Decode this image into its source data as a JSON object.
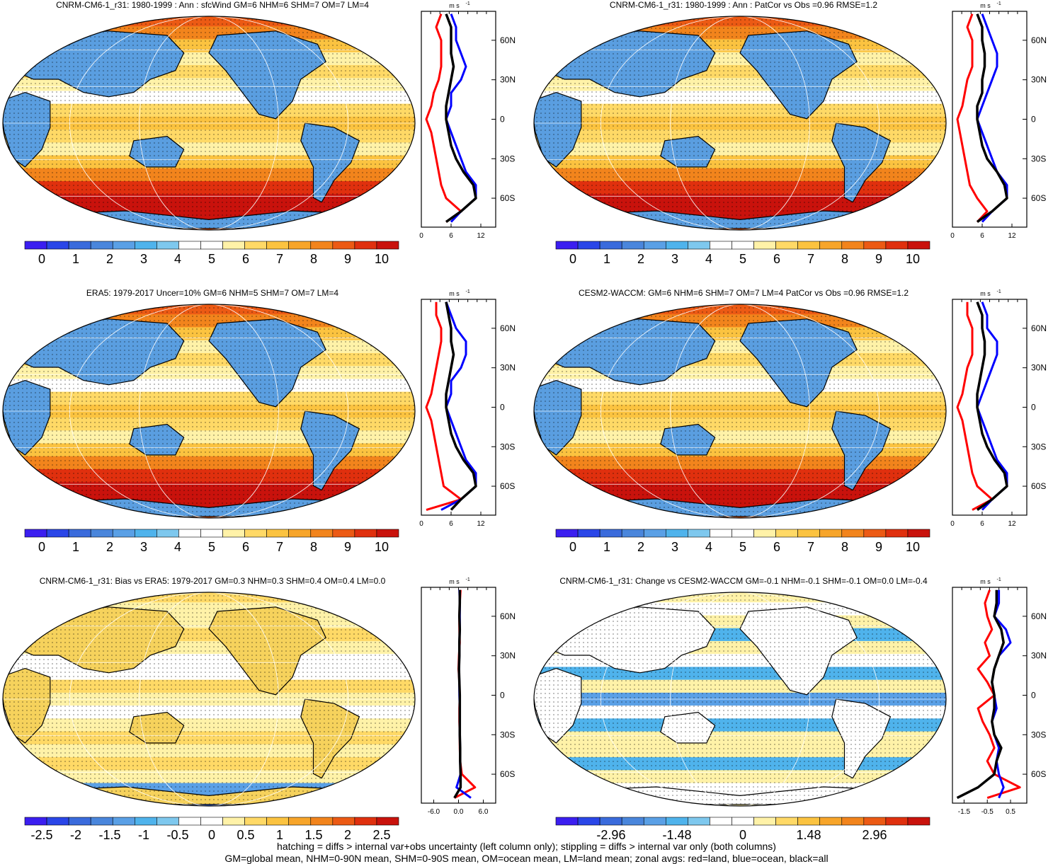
{
  "footer": {
    "line1": "hatching = diffs > internal var+obs uncertainty (left column only); stippling = diffs > internal var only (both columns)",
    "line2": "GM=global mean, NHM=0-90N mean, SHM=0-90S mean, OM=ocean mean, LM=land mean; zonal avgs: red=land, blue=ocean, black=all"
  },
  "colors": {
    "scale": [
      "#3b1ef0",
      "#2a46e8",
      "#3a6bdc",
      "#4a86dc",
      "#5aa0e6",
      "#4fb3ec",
      "#7ec8ee",
      "#ffffff",
      "#ffffff",
      "#fff2a8",
      "#ffd966",
      "#fbc340",
      "#f7a52a",
      "#f2841c",
      "#ec5a14",
      "#e0300e",
      "#c9120c"
    ],
    "land": "#ff0000",
    "ocean": "#0000ff",
    "all": "#000000",
    "continent": "#5a9ee0"
  },
  "chart_data": [
    {
      "id": "p1",
      "type": "heatmap",
      "title": "CNRM-CM6-1_r31: 1980-1999 : Ann : sfcWind GM=6 NHM=6 SHM=7 OM=7 LM=4",
      "colorbar": {
        "min": -0.5,
        "max": 10.5,
        "labels": [
          "0",
          "1",
          "2",
          "3",
          "4",
          "5",
          "6",
          "7",
          "8",
          "9",
          "10"
        ],
        "label_values": [
          0,
          1,
          2,
          3,
          4,
          5,
          6,
          7,
          8,
          9,
          10
        ]
      },
      "profile": {
        "unit": "m s",
        "unit_exp": "-1",
        "xlim": [
          0,
          15
        ],
        "xticks": [
          0,
          6,
          12
        ],
        "xtick_labels": [
          "0",
          "6",
          "12"
        ],
        "lat_ticks": [
          60,
          30,
          0,
          -30,
          -60
        ],
        "lat_labels": [
          "60N",
          "30N",
          "0",
          "30S",
          "60S"
        ],
        "lat": [
          80,
          70,
          60,
          50,
          40,
          30,
          20,
          10,
          0,
          -10,
          -20,
          -30,
          -40,
          -50,
          -60,
          -70,
          -78
        ],
        "land": [
          4,
          3,
          4,
          4,
          4,
          3.5,
          2.5,
          2,
          1,
          2,
          2.5,
          3,
          3.5,
          4,
          5,
          8,
          5
        ],
        "ocean": [
          6,
          7,
          7,
          8,
          9,
          8,
          6,
          6,
          5,
          6,
          7,
          8,
          9,
          11,
          11,
          8,
          6
        ],
        "all": [
          5,
          6,
          6,
          6,
          6.5,
          6,
          5.5,
          5,
          5,
          5.5,
          6,
          7,
          8.5,
          10.5,
          11,
          8,
          5
        ]
      }
    },
    {
      "id": "p2",
      "type": "heatmap",
      "title": "CNRM-CM6-1_r31: 1980-1999 : Ann : PatCor vs Obs =0.96 RMSE=1.2",
      "colorbar": {
        "min": -0.5,
        "max": 10.5,
        "labels": [
          "0",
          "1",
          "2",
          "3",
          "4",
          "5",
          "6",
          "7",
          "8",
          "9",
          "10"
        ],
        "label_values": [
          0,
          1,
          2,
          3,
          4,
          5,
          6,
          7,
          8,
          9,
          10
        ]
      },
      "profile": {
        "unit": "m s",
        "unit_exp": "-1",
        "xlim": [
          0,
          15
        ],
        "xticks": [
          0,
          6,
          12
        ],
        "xtick_labels": [
          "0",
          "6",
          "12"
        ],
        "lat_ticks": [
          60,
          30,
          0,
          -30,
          -60
        ],
        "lat_labels": [
          "60N",
          "30N",
          "0",
          "30S",
          "60S"
        ],
        "lat": [
          80,
          70,
          60,
          50,
          40,
          30,
          20,
          10,
          0,
          -10,
          -20,
          -30,
          -40,
          -50,
          -60,
          -70,
          -78
        ],
        "land": [
          4,
          3,
          4,
          4,
          4,
          3,
          2.5,
          2,
          1,
          1.5,
          2,
          2.5,
          3,
          3.5,
          5,
          7,
          5
        ],
        "ocean": [
          6,
          7,
          8,
          9,
          9,
          8,
          7,
          6,
          5,
          6,
          7,
          8,
          9,
          11,
          11,
          8,
          6
        ],
        "all": [
          5,
          6,
          6,
          6.5,
          6.5,
          6,
          6,
          5,
          5,
          5.5,
          6,
          7,
          9,
          10.5,
          11,
          8,
          5
        ]
      }
    },
    {
      "id": "p3",
      "type": "heatmap",
      "title": "ERA5: 1979-2017 Uncer=10% GM=6 NHM=5 SHM=7 OM=7 LM=4",
      "colorbar": {
        "min": -0.5,
        "max": 10.5,
        "labels": [
          "0",
          "1",
          "2",
          "3",
          "4",
          "5",
          "6",
          "7",
          "8",
          "9",
          "10"
        ],
        "label_values": [
          0,
          1,
          2,
          3,
          4,
          5,
          6,
          7,
          8,
          9,
          10
        ]
      },
      "profile": {
        "unit": "m s",
        "unit_exp": "-1",
        "xlim": [
          0,
          15
        ],
        "xticks": [
          0,
          6,
          12
        ],
        "xtick_labels": [
          "0",
          "6",
          "12"
        ],
        "lat_ticks": [
          60,
          30,
          0,
          -30,
          -60
        ],
        "lat_labels": [
          "60N",
          "30N",
          "0",
          "30S",
          "60S"
        ],
        "lat": [
          80,
          70,
          60,
          50,
          40,
          30,
          20,
          10,
          0,
          -10,
          -20,
          -30,
          -40,
          -50,
          -60,
          -70,
          -78
        ],
        "land": [
          3,
          3,
          4,
          4,
          3.5,
          3,
          2.5,
          2,
          1,
          2,
          2.5,
          3,
          3.5,
          4,
          4.5,
          8,
          1
        ],
        "ocean": [
          5,
          6,
          7,
          9,
          9,
          8,
          6,
          6,
          5,
          6,
          7,
          8,
          9,
          11,
          11,
          8,
          4
        ],
        "all": [
          5,
          5.5,
          6,
          6,
          6.5,
          6,
          5.5,
          5,
          5,
          5.5,
          6,
          7,
          8.5,
          10.5,
          11,
          8,
          6
        ]
      }
    },
    {
      "id": "p4",
      "type": "heatmap",
      "title": "CESM2-WACCM: GM=6 NHM=6 SHM=7 OM=7 LM=4 PatCor vs Obs =0.96 RMSE=1.2",
      "colorbar": {
        "min": -0.5,
        "max": 10.5,
        "labels": [
          "0",
          "1",
          "2",
          "3",
          "4",
          "5",
          "6",
          "7",
          "8",
          "9",
          "10"
        ],
        "label_values": [
          0,
          1,
          2,
          3,
          4,
          5,
          6,
          7,
          8,
          9,
          10
        ]
      },
      "profile": {
        "unit": "m s",
        "unit_exp": "-1",
        "xlim": [
          0,
          15
        ],
        "xticks": [
          0,
          6,
          12
        ],
        "xtick_labels": [
          "0",
          "6",
          "12"
        ],
        "lat_ticks": [
          60,
          30,
          0,
          -30,
          -60
        ],
        "lat_labels": [
          "60N",
          "30N",
          "0",
          "30S",
          "60S"
        ],
        "lat": [
          80,
          70,
          60,
          50,
          40,
          30,
          20,
          10,
          0,
          -10,
          -20,
          -30,
          -40,
          -50,
          -60,
          -70,
          -78
        ],
        "land": [
          3,
          3,
          4,
          4,
          4,
          3,
          2.5,
          2,
          1,
          2,
          2.5,
          3,
          3.5,
          4,
          5,
          8,
          4
        ],
        "ocean": [
          6,
          7,
          7,
          9,
          9,
          8,
          7,
          6,
          5,
          6,
          7,
          8,
          9,
          11,
          11,
          8,
          6
        ],
        "all": [
          5,
          6,
          6,
          6.5,
          6.5,
          6,
          5.5,
          5,
          5,
          5.5,
          6,
          7,
          8.5,
          10.5,
          11,
          8,
          5
        ]
      }
    },
    {
      "id": "p5",
      "type": "heatmap",
      "title": "CNRM-CM6-1_r31: Bias vs ERA5: 1979-2017 GM=0.3 NHM=0.3 SHM=0.4 OM=0.4 LM=0.0",
      "colorbar": {
        "min": -2.75,
        "max": 2.75,
        "labels": [
          "-2.5",
          "-2",
          "-1.5",
          "-1",
          "-0.5",
          "0",
          "0.5",
          "1",
          "1.5",
          "2",
          "2.5"
        ],
        "label_values": [
          -2.5,
          -2,
          -1.5,
          -1,
          -0.5,
          0,
          0.5,
          1,
          1.5,
          2,
          2.5
        ]
      },
      "profile": {
        "unit": "m s",
        "unit_exp": "-1",
        "xlim": [
          -9,
          9
        ],
        "xticks": [
          -6,
          0,
          6
        ],
        "xtick_labels": [
          "-6.0",
          "0.0",
          "6.0"
        ],
        "lat_ticks": [
          60,
          30,
          0,
          -30,
          -60
        ],
        "lat_labels": [
          "60N",
          "30N",
          "0",
          "30S",
          "60S"
        ],
        "lat": [
          80,
          70,
          60,
          50,
          40,
          30,
          20,
          10,
          0,
          -10,
          -20,
          -30,
          -40,
          -50,
          -60,
          -70,
          -78
        ],
        "land": [
          0.5,
          0.3,
          0.2,
          0.2,
          0.3,
          0.1,
          0,
          0.2,
          0.3,
          0.2,
          0.2,
          0.3,
          0.3,
          0.4,
          0.8,
          4,
          -1
        ],
        "ocean": [
          0.2,
          0.3,
          0.3,
          0.3,
          0.2,
          0.2,
          0.1,
          0.2,
          0.2,
          0.3,
          0.3,
          0.3,
          0.4,
          0.4,
          0.5,
          -0.5,
          3
        ],
        "all": [
          0.3,
          0.3,
          0.2,
          0.3,
          0.2,
          0.2,
          0.1,
          0.2,
          0.3,
          0.3,
          0.3,
          0.3,
          0.4,
          0.4,
          0.5,
          0.5,
          -1
        ]
      }
    },
    {
      "id": "p6",
      "type": "heatmap",
      "title": "CNRM-CM6-1_r31: Change vs CESM2-WACCM GM=-0.1 NHM=-0.1 SHM=-0.1 OM=0.0 LM=-0.4",
      "colorbar": {
        "min": -4.2,
        "max": 4.2,
        "labels": [
          "-2.96",
          "-1.48",
          "0",
          "1.48",
          "2.96"
        ],
        "label_values": [
          -2.96,
          -1.48,
          0,
          1.48,
          2.96
        ]
      },
      "profile": {
        "unit": "m s",
        "unit_exp": "-1",
        "xlim": [
          -2,
          1.2
        ],
        "xticks": [
          -1.5,
          -0.5,
          0.5
        ],
        "xtick_labels": [
          "-1.5",
          "-0.5",
          "0.5"
        ],
        "lat_ticks": [
          60,
          30,
          0,
          -30,
          -60
        ],
        "lat_labels": [
          "60N",
          "30N",
          "0",
          "30S",
          "60S"
        ],
        "lat": [
          80,
          70,
          60,
          50,
          40,
          30,
          20,
          10,
          0,
          -10,
          -20,
          -30,
          -40,
          -50,
          -60,
          -70,
          -78
        ],
        "land": [
          -0.4,
          -0.6,
          -0.5,
          -0.3,
          -0.6,
          -0.4,
          -0.9,
          -0.5,
          -0.2,
          -0.9,
          -0.7,
          -0.4,
          -0.2,
          -0.5,
          -0.2,
          0.9,
          -0.5
        ],
        "ocean": [
          0,
          0,
          -0.2,
          0.3,
          0.5,
          0,
          -0.2,
          -0.3,
          -0.2,
          -0.1,
          -0.3,
          -0.2,
          0,
          -0.1,
          0,
          0.2,
          0
        ],
        "all": [
          -0.1,
          -0.1,
          -0.2,
          0.1,
          0.2,
          0,
          -0.2,
          -0.3,
          -0.2,
          -0.2,
          -0.3,
          -0.2,
          0.1,
          -0.1,
          -0.2,
          -0.9,
          -1.8
        ]
      }
    }
  ]
}
